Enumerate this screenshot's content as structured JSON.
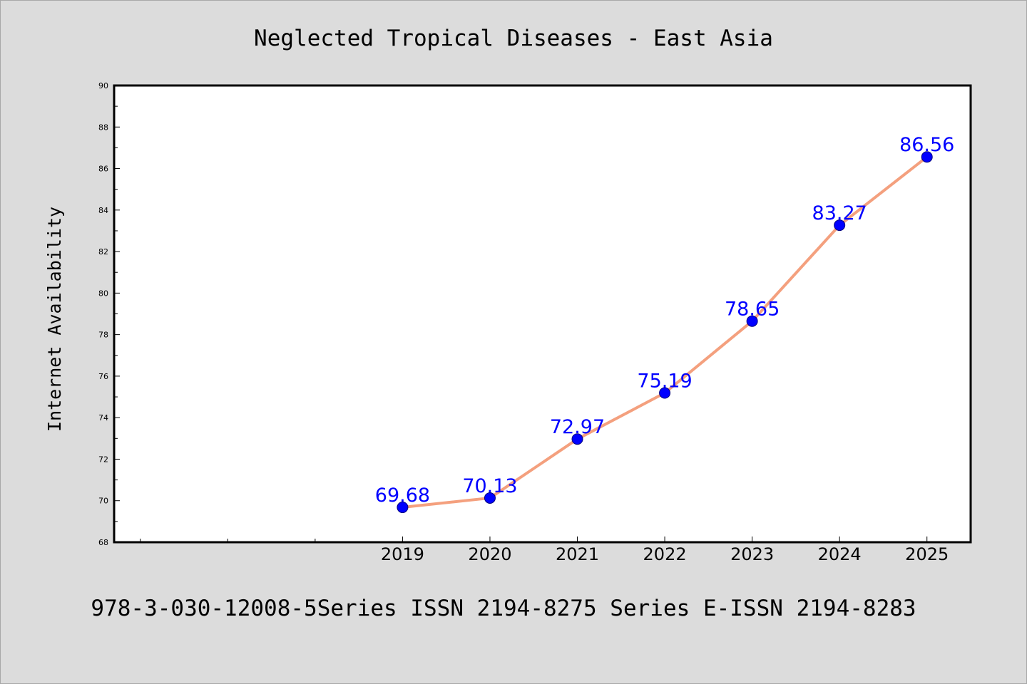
{
  "chart_data": {
    "type": "line",
    "title": "Neglected Tropical Diseases - East Asia",
    "xlabel": "",
    "ylabel": "Internet Availability",
    "x": [
      2019,
      2020,
      2021,
      2022,
      2023,
      2024,
      2025
    ],
    "series": [
      {
        "values": [
          69.68,
          70.13,
          72.97,
          75.19,
          78.65,
          83.27,
          86.56
        ],
        "labels": [
          "69.68",
          "70.13",
          "72.97",
          "75.19",
          "78.65",
          "83.27",
          "86.56"
        ]
      }
    ],
    "xlim": [
      2015.7,
      2025.5
    ],
    "ylim": [
      68,
      90
    ],
    "yticks": [
      68,
      70,
      72,
      74,
      76,
      78,
      80,
      82,
      84,
      86,
      88,
      90
    ],
    "xticks": [
      2019,
      2020,
      2021,
      2022,
      2023,
      2024,
      2025
    ],
    "unlabeled_xticks": [
      2016,
      2017,
      2018
    ],
    "grid": false,
    "legend": "none",
    "line_color": "#f4a07e",
    "marker_color": "#0000ff",
    "label_color": "#0000ff",
    "background_color": "#dcdcdc",
    "plot_background": "#ffffff"
  },
  "footnote": "978-3-030-12008-5Series ISSN 2194-8275 Series E-ISSN 2194-8283"
}
